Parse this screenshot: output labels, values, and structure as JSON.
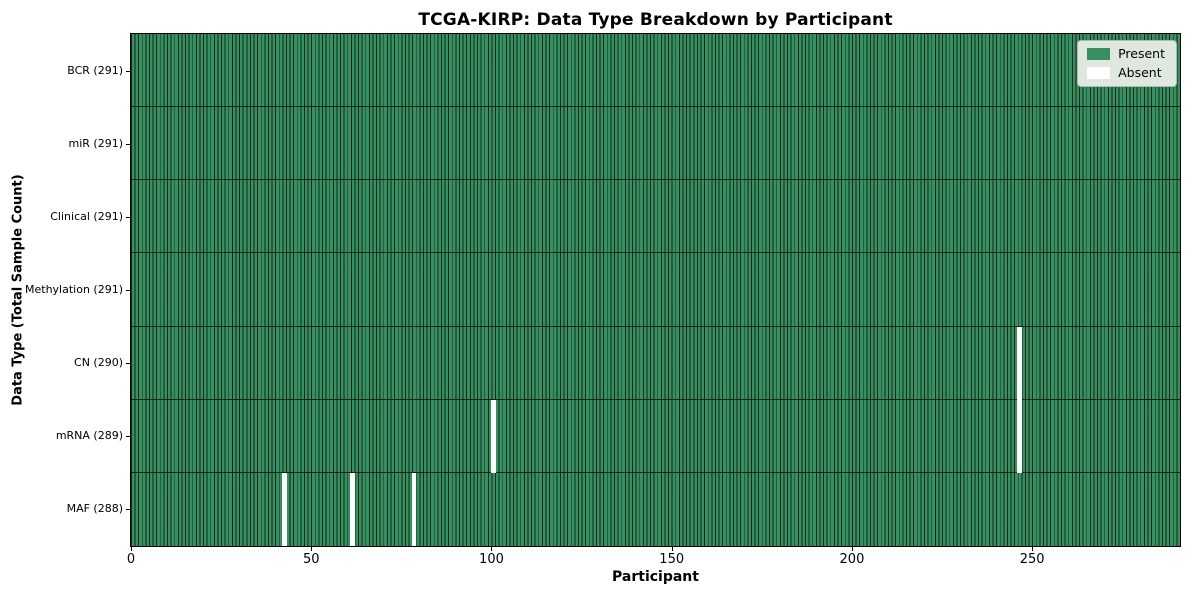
{
  "figure": {
    "background": "#ffffff"
  },
  "chart_data": {
    "type": "heatmap",
    "title": "TCGA-KIRP: Data Type Breakdown by Participant",
    "xlabel": "Participant",
    "ylabel": "Data Type (Total Sample Count)",
    "x_ticks": [
      0,
      50,
      100,
      150,
      200,
      250
    ],
    "xlim": [
      0,
      291
    ],
    "n_participants": 291,
    "grid": false,
    "legend": {
      "position": "upper right",
      "entries": [
        {
          "label": "Present",
          "color": "#359160"
        },
        {
          "label": "Absent",
          "color": "#ffffff"
        }
      ]
    },
    "rows": [
      {
        "label": "BCR (291)",
        "data_type": "BCR",
        "total": 291,
        "absent_participants": []
      },
      {
        "label": "miR (291)",
        "data_type": "miR",
        "total": 291,
        "absent_participants": []
      },
      {
        "label": "Clinical (291)",
        "data_type": "Clinical",
        "total": 291,
        "absent_participants": []
      },
      {
        "label": "Methylation (291)",
        "data_type": "Methylation",
        "total": 291,
        "absent_participants": []
      },
      {
        "label": "CN (290)",
        "data_type": "CN",
        "total": 290,
        "absent_participants": [
          246
        ]
      },
      {
        "label": "mRNA (289)",
        "data_type": "mRNA",
        "total": 289,
        "absent_participants": [
          100,
          246
        ]
      },
      {
        "label": "MAF (288)",
        "data_type": "MAF",
        "total": 288,
        "absent_participants": [
          42,
          61,
          78
        ]
      }
    ],
    "colors": {
      "present": "#359160",
      "absent": "#ffffff",
      "bar_edge": "#14291b",
      "row_divider": "#0a140d",
      "axis": "#000000"
    }
  }
}
